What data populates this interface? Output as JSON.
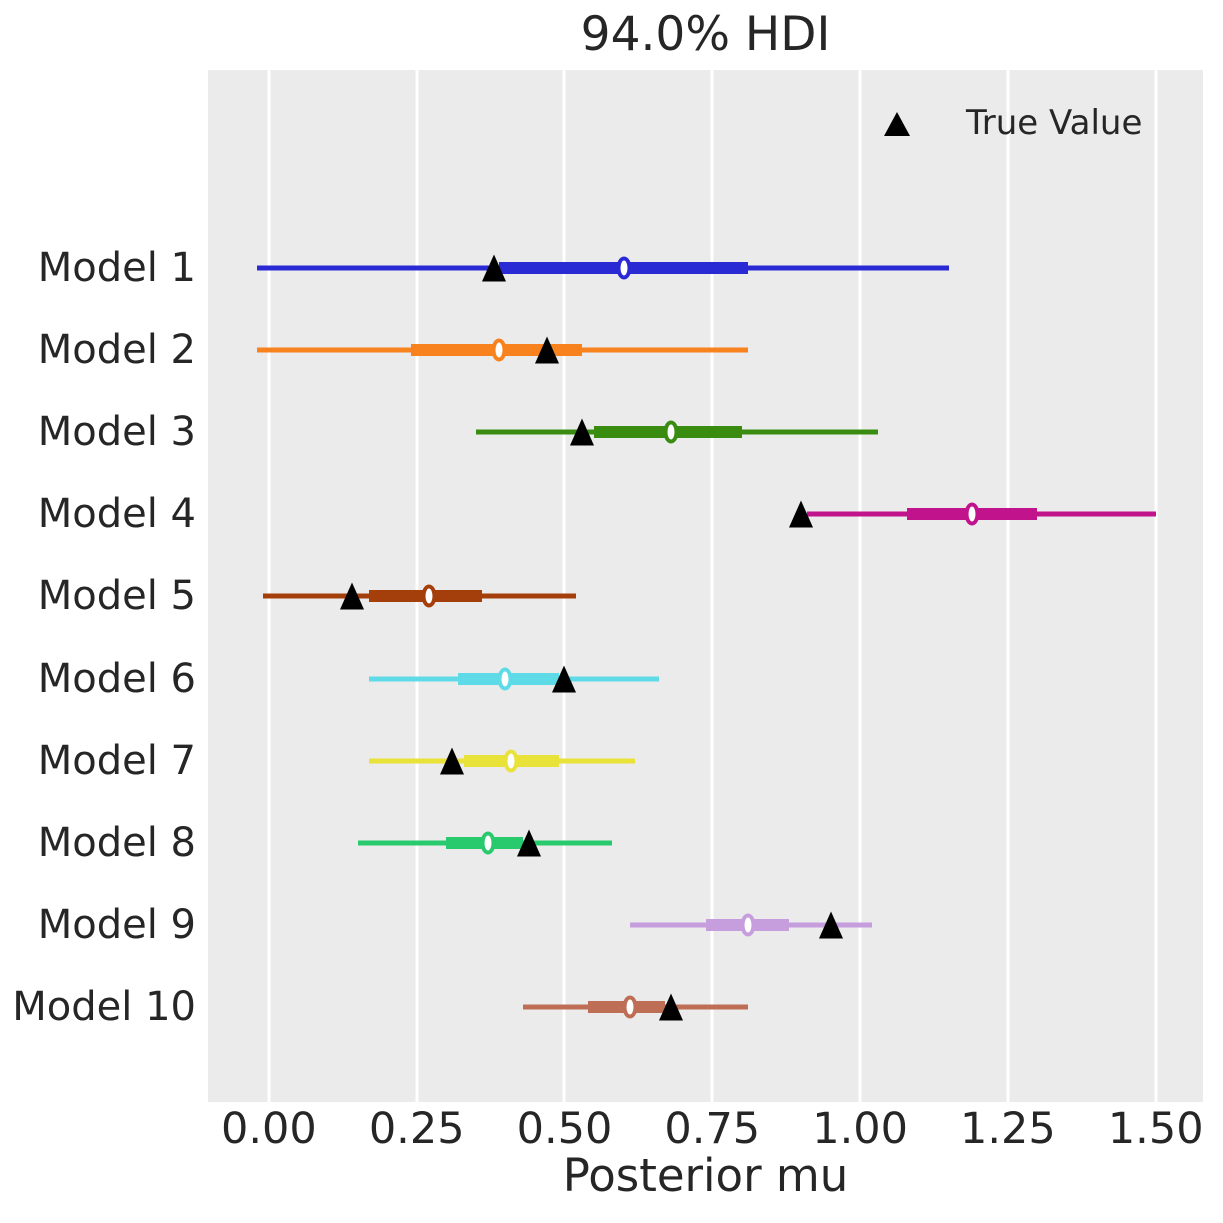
{
  "title": "94.0% HDI",
  "legend": {
    "label": "True Value",
    "marker": "black-up-triangle"
  },
  "chart_data": {
    "type": "scatter",
    "variant": "forest-plot-hdi-intervals",
    "title": "94.0% HDI",
    "xlabel": "Posterior mu",
    "ylabel": "",
    "xlim": [
      -0.103,
      1.58
    ],
    "grid": "vertical-white-gridlines-on-gray",
    "legend_position": "upper-right-inside",
    "background_color": "#ebebeb",
    "gridline_color": "#ffffff",
    "text_color": "#262626",
    "true_value_marker_color": "#000000",
    "xticks": [
      {
        "value": 0.0,
        "label": "0.00"
      },
      {
        "value": 0.25,
        "label": "0.25"
      },
      {
        "value": 0.5,
        "label": "0.50"
      },
      {
        "value": 0.75,
        "label": "0.75"
      },
      {
        "value": 1.0,
        "label": "1.00"
      },
      {
        "value": 1.25,
        "label": "1.25"
      },
      {
        "value": 1.5,
        "label": "1.50"
      }
    ],
    "rows": [
      {
        "label": "Model 1",
        "color": "#2a2ad4",
        "hdi_94_low": -0.02,
        "hdi_94_high": 1.15,
        "band_low": 0.39,
        "band_high": 0.81,
        "median": 0.6,
        "true_value": 0.38
      },
      {
        "label": "Model 2",
        "color": "#f8821d",
        "hdi_94_low": -0.02,
        "hdi_94_high": 0.81,
        "band_low": 0.24,
        "band_high": 0.53,
        "median": 0.39,
        "true_value": 0.47
      },
      {
        "label": "Model 3",
        "color": "#3a8c10",
        "hdi_94_low": 0.35,
        "hdi_94_high": 1.03,
        "band_low": 0.55,
        "band_high": 0.8,
        "median": 0.68,
        "true_value": 0.53
      },
      {
        "label": "Model 4",
        "color": "#c0138c",
        "hdi_94_low": 0.91,
        "hdi_94_high": 1.5,
        "band_low": 1.08,
        "band_high": 1.3,
        "median": 1.19,
        "true_value": 0.9
      },
      {
        "label": "Model 5",
        "color": "#a43e0a",
        "hdi_94_low": -0.01,
        "hdi_94_high": 0.52,
        "band_low": 0.17,
        "band_high": 0.36,
        "median": 0.27,
        "true_value": 0.14
      },
      {
        "label": "Model 6",
        "color": "#5fdbe8",
        "hdi_94_low": 0.17,
        "hdi_94_high": 0.66,
        "band_low": 0.32,
        "band_high": 0.49,
        "median": 0.4,
        "true_value": 0.5
      },
      {
        "label": "Model 7",
        "color": "#e8e239",
        "hdi_94_low": 0.17,
        "hdi_94_high": 0.62,
        "band_low": 0.33,
        "band_high": 0.49,
        "median": 0.41,
        "true_value": 0.31
      },
      {
        "label": "Model 8",
        "color": "#29c96e",
        "hdi_94_low": 0.15,
        "hdi_94_high": 0.58,
        "band_low": 0.3,
        "band_high": 0.43,
        "median": 0.37,
        "true_value": 0.44
      },
      {
        "label": "Model 9",
        "color": "#c69ddd",
        "hdi_94_low": 0.61,
        "hdi_94_high": 1.02,
        "band_low": 0.74,
        "band_high": 0.88,
        "median": 0.81,
        "true_value": 0.95
      },
      {
        "label": "Model 10",
        "color": "#bd6e55",
        "hdi_94_low": 0.43,
        "hdi_94_high": 0.81,
        "band_low": 0.54,
        "band_high": 0.67,
        "median": 0.61,
        "true_value": 0.68
      }
    ]
  }
}
